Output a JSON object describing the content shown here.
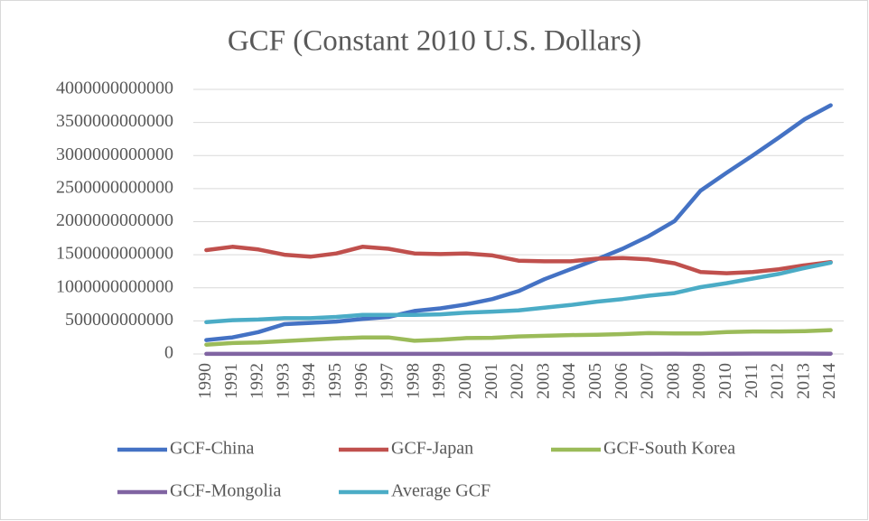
{
  "chart_data": {
    "type": "line",
    "title": "GCF (Constant 2010 U.S. Dollars)",
    "categories": [
      "1990",
      "1991",
      "1992",
      "1993",
      "1994",
      "1995",
      "1996",
      "1997",
      "1998",
      "1999",
      "2000",
      "2001",
      "2002",
      "2003",
      "2004",
      "2005",
      "2006",
      "2007",
      "2008",
      "2009",
      "2010",
      "2011",
      "2012",
      "2013",
      "2014"
    ],
    "series": [
      {
        "name": "GCF-China",
        "color": "#4472c4",
        "values": [
          210000000000,
          250000000000,
          330000000000,
          450000000000,
          470000000000,
          490000000000,
          530000000000,
          560000000000,
          650000000000,
          690000000000,
          750000000000,
          830000000000,
          950000000000,
          1130000000000,
          1280000000000,
          1430000000000,
          1590000000000,
          1780000000000,
          2010000000000,
          2470000000000,
          2740000000000,
          3000000000000,
          3270000000000,
          3550000000000,
          3760000000000
        ]
      },
      {
        "name": "GCF-Japan",
        "color": "#c0504d",
        "values": [
          1570000000000,
          1620000000000,
          1580000000000,
          1500000000000,
          1470000000000,
          1520000000000,
          1620000000000,
          1590000000000,
          1520000000000,
          1510000000000,
          1520000000000,
          1490000000000,
          1410000000000,
          1400000000000,
          1400000000000,
          1440000000000,
          1450000000000,
          1430000000000,
          1370000000000,
          1240000000000,
          1220000000000,
          1240000000000,
          1280000000000,
          1340000000000,
          1390000000000
        ]
      },
      {
        "name": "GCF-South Korea",
        "color": "#9bbb59",
        "values": [
          140000000000,
          165000000000,
          175000000000,
          195000000000,
          215000000000,
          235000000000,
          250000000000,
          250000000000,
          200000000000,
          215000000000,
          240000000000,
          245000000000,
          265000000000,
          275000000000,
          285000000000,
          290000000000,
          300000000000,
          315000000000,
          310000000000,
          310000000000,
          330000000000,
          340000000000,
          340000000000,
          345000000000,
          360000000000
        ]
      },
      {
        "name": "GCF-Mongolia",
        "color": "#8064a2",
        "values": [
          1000000000,
          1000000000,
          1000000000,
          1000000000,
          1000000000,
          1000000000,
          1000000000,
          1000000000,
          1000000000,
          1000000000,
          1000000000,
          1000000000,
          1000000000,
          1000000000,
          1000000000,
          1500000000,
          2000000000,
          2000000000,
          3000000000,
          2000000000,
          3000000000,
          5000000000,
          5000000000,
          5000000000,
          4000000000
        ]
      },
      {
        "name": "Average GCF",
        "color": "#4bacc6",
        "values": [
          480000000000,
          510000000000,
          520000000000,
          540000000000,
          540000000000,
          560000000000,
          590000000000,
          590000000000,
          590000000000,
          600000000000,
          625000000000,
          640000000000,
          660000000000,
          700000000000,
          740000000000,
          790000000000,
          830000000000,
          880000000000,
          920000000000,
          1010000000000,
          1070000000000,
          1140000000000,
          1210000000000,
          1300000000000,
          1380000000000
        ]
      }
    ],
    "ylim": [
      0,
      4000000000000
    ],
    "yticks": [
      0,
      500000000000,
      1000000000000,
      1500000000000,
      2000000000000,
      2500000000000,
      3000000000000,
      3500000000000,
      4000000000000
    ],
    "grid": true
  }
}
